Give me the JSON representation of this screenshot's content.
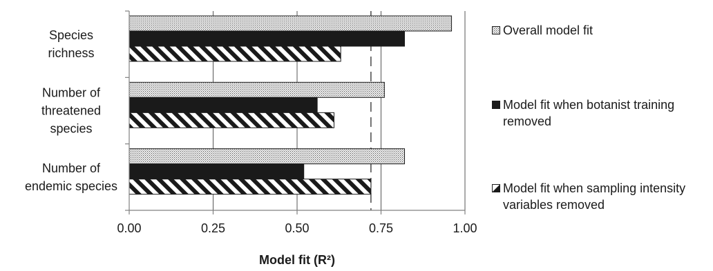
{
  "chart_data": {
    "type": "bar",
    "orientation": "horizontal",
    "categories": [
      [
        "Species",
        "richness"
      ],
      [
        "Number of",
        "threatened",
        "species"
      ],
      [
        "Number of",
        "endemic species"
      ]
    ],
    "series": [
      {
        "name": "Overall model fit",
        "values": [
          0.96,
          0.76,
          0.82
        ],
        "pattern": "dots"
      },
      {
        "name": "Model fit when botanist training removed",
        "values": [
          0.82,
          0.56,
          0.52
        ],
        "pattern": "solid"
      },
      {
        "name": "Model fit when sampling intensity variables removed",
        "values": [
          0.63,
          0.61,
          0.72
        ],
        "pattern": "hatch"
      }
    ],
    "xlabel": "Model fit (R²)",
    "xlim": [
      0,
      1
    ],
    "xticks": [
      "0.00",
      "0.25",
      "0.50",
      "0.75",
      "1.00"
    ],
    "reference_line": 0.72,
    "grid": true,
    "legend_position": "right",
    "colors": {
      "bar_dark": "#1a1a1a",
      "axis": "#808080",
      "text": "#1a1a1a"
    }
  }
}
